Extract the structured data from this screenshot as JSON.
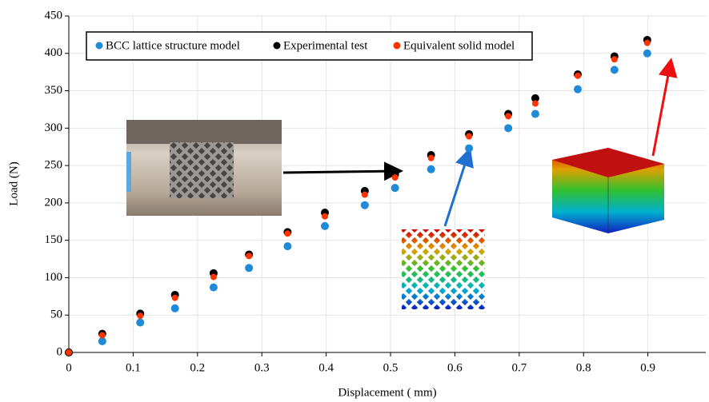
{
  "chart_data": {
    "type": "scatter",
    "x_label": "Displacement ( mm)",
    "y_label": "Load (N)",
    "x": [
      0,
      0.052,
      0.111,
      0.165,
      0.225,
      0.28,
      0.34,
      0.398,
      0.46,
      0.507,
      0.563,
      0.622,
      0.683,
      0.725,
      0.791,
      0.848,
      0.899
    ],
    "series": [
      {
        "name": "BCC lattice structure model",
        "color": "#1f8ad8",
        "values": [
          0,
          15,
          40,
          59,
          87,
          113,
          142,
          169,
          197,
          220,
          245,
          273,
          300,
          319,
          352,
          378,
          400
        ]
      },
      {
        "name": "Experimental test",
        "color": "#000000",
        "values": [
          0,
          25,
          52,
          77,
          106,
          131,
          161,
          187,
          216,
          238,
          264,
          292,
          319,
          340,
          372,
          396,
          418
        ]
      },
      {
        "name": "Equivalent solid model",
        "color": "#ff3300",
        "values": [
          0,
          23,
          49,
          73,
          101,
          129,
          159,
          182,
          211,
          234,
          260,
          289,
          316,
          333,
          370,
          392,
          414
        ]
      }
    ],
    "xlim": [
      0,
      0.99
    ],
    "xticks": [
      0,
      0.1,
      0.2,
      0.3,
      0.4,
      0.5,
      0.6,
      0.7,
      0.8,
      0.9
    ],
    "ylim": [
      0,
      450
    ],
    "yticks": [
      0,
      50,
      100,
      150,
      200,
      250,
      300,
      350,
      400,
      450
    ],
    "grid": true
  }
}
